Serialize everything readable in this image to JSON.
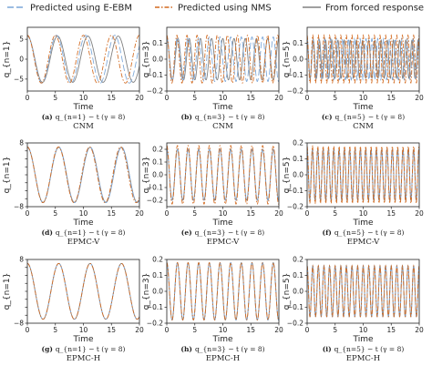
{
  "legend": {
    "entries": [
      {
        "label": "Predicted using E-EBM",
        "color": "#7aa6d8",
        "dash": "7 3"
      },
      {
        "label": "Predicted using NMS",
        "color": "#d2691e",
        "dash": "5 2 1.5 2"
      },
      {
        "label": "From forced response",
        "color": "#808080",
        "dash": ""
      }
    ]
  },
  "chart_data": [
    {
      "id": "a",
      "type": "line",
      "caption_letter": "(a)",
      "caption_text": "q_{n=1} − t (γ = 8)",
      "method": "CNM",
      "xlabel": "Time",
      "ylabel": "q_{n=1}",
      "xlim": [
        0,
        20
      ],
      "ylim": [
        -8,
        8
      ],
      "x_ticks": [
        0,
        5,
        10,
        15,
        20
      ],
      "y_ticks": [
        -5,
        0,
        5
      ],
      "y_tick_labels": [
        "−5",
        "0",
        "5"
      ],
      "series": [
        {
          "name": "Predicted using E-EBM",
          "amplitude": 6.0,
          "period": 5.2
        },
        {
          "name": "Predicted using NMS",
          "amplitude": 6.0,
          "period": 5.0
        },
        {
          "name": "From forced response",
          "amplitude": 5.8,
          "period": 5.4
        }
      ]
    },
    {
      "id": "b",
      "type": "line",
      "caption_letter": "(b)",
      "caption_text": "q_{n=3} − t (γ = 8)",
      "method": "CNM",
      "xlabel": "Time",
      "ylabel": "q_{n=3}",
      "xlim": [
        0,
        20
      ],
      "ylim": [
        -0.2,
        0.2
      ],
      "x_ticks": [
        0,
        5,
        10,
        15,
        20
      ],
      "y_ticks": [
        -0.2,
        -0.1,
        0.0,
        0.1
      ],
      "y_tick_labels": [
        "−0.2",
        "−0.1",
        "0.0",
        "0.1"
      ],
      "series": [
        {
          "name": "Predicted using E-EBM",
          "amplitude": 0.14,
          "period": 1.9
        },
        {
          "name": "Predicted using NMS",
          "amplitude": 0.15,
          "period": 1.8
        },
        {
          "name": "From forced response",
          "amplitude": 0.13,
          "period": 2.0
        }
      ]
    },
    {
      "id": "c",
      "type": "line",
      "caption_letter": "(c)",
      "caption_text": "q_{n=5} − t (γ = 8)",
      "method": "CNM",
      "xlabel": "Time",
      "ylabel": "q_{n=5}",
      "xlim": [
        0,
        20
      ],
      "ylim": [
        -0.2,
        0.2
      ],
      "x_ticks": [
        0,
        5,
        10,
        15,
        20
      ],
      "y_ticks": [
        -0.2,
        -0.1,
        0.0,
        0.1
      ],
      "y_tick_labels": [
        "−0.2",
        "−0.1",
        "0.0",
        "0.1"
      ],
      "series": [
        {
          "name": "Predicted using E-EBM",
          "amplitude": 0.13,
          "period": 1.05
        },
        {
          "name": "Predicted using NMS",
          "amplitude": 0.15,
          "period": 1.0
        },
        {
          "name": "From forced response",
          "amplitude": 0.12,
          "period": 1.1
        }
      ]
    },
    {
      "id": "d",
      "type": "line",
      "caption_letter": "(d)",
      "caption_text": "q_{n=1} − t (γ = 8)",
      "method": "EPMC-V",
      "xlabel": "Time",
      "ylabel": "q_{n=1}",
      "xlim": [
        0,
        20
      ],
      "ylim": [
        -8,
        8
      ],
      "x_ticks": [
        0,
        5,
        10,
        15,
        20
      ],
      "y_ticks": [
        -8,
        -6,
        -4,
        -2,
        0,
        2,
        4,
        6,
        8
      ],
      "y_tick_labels": [
        "−8",
        "",
        "",
        "",
        "",
        "",
        "",
        "",
        "8"
      ],
      "series": [
        {
          "name": "Predicted using E-EBM",
          "amplitude": 7.0,
          "period": 5.6
        },
        {
          "name": "Predicted using NMS",
          "amplitude": 7.0,
          "period": 5.55
        },
        {
          "name": "From forced response",
          "amplitude": 6.9,
          "period": 5.6
        }
      ]
    },
    {
      "id": "e",
      "type": "line",
      "caption_letter": "(e)",
      "caption_text": "q_{n=3} − t (γ = 8)",
      "method": "EPMC-V",
      "xlabel": "Time",
      "ylabel": "q_{n=3}",
      "xlim": [
        0,
        20
      ],
      "ylim": [
        -0.25,
        0.25
      ],
      "x_ticks": [
        0,
        5,
        10,
        15,
        20
      ],
      "y_ticks": [
        -0.2,
        -0.1,
        0.0,
        0.1,
        0.2
      ],
      "y_tick_labels": [
        "−0.2",
        "−0.1",
        "0.0",
        "0.1",
        "0.2"
      ],
      "series": [
        {
          "name": "Predicted using E-EBM",
          "amplitude": 0.2,
          "period": 1.9
        },
        {
          "name": "Predicted using NMS",
          "amplitude": 0.23,
          "period": 1.9
        },
        {
          "name": "From forced response",
          "amplitude": 0.2,
          "period": 1.9
        }
      ]
    },
    {
      "id": "f",
      "type": "line",
      "caption_letter": "(f)",
      "caption_text": "q_{n=5} − t (γ = 8)",
      "method": "EPMC-V",
      "xlabel": "Time",
      "ylabel": "q_{n=5}",
      "xlim": [
        0,
        20
      ],
      "ylim": [
        -0.2,
        0.2
      ],
      "x_ticks": [
        0,
        5,
        10,
        15,
        20
      ],
      "y_ticks": [
        -0.2,
        -0.1,
        0.0,
        0.1,
        0.2
      ],
      "y_tick_labels": [
        "−0.2",
        "−0.1",
        "0.0",
        "0.1",
        "0.2"
      ],
      "series": [
        {
          "name": "Predicted using E-EBM",
          "amplitude": 0.15,
          "period": 0.95
        },
        {
          "name": "Predicted using NMS",
          "amplitude": 0.18,
          "period": 0.95
        },
        {
          "name": "From forced response",
          "amplitude": 0.16,
          "period": 0.95
        }
      ]
    },
    {
      "id": "g",
      "type": "line",
      "caption_letter": "(g)",
      "caption_text": "q_{n=1} − t (γ = 8)",
      "method": "EPMC-H",
      "xlabel": "Time",
      "ylabel": "q_{n=1}",
      "xlim": [
        0,
        20
      ],
      "ylim": [
        -8,
        8
      ],
      "x_ticks": [
        0,
        5,
        10,
        15,
        20
      ],
      "y_ticks": [
        -8,
        -6,
        -4,
        -2,
        0,
        2,
        4,
        6,
        8
      ],
      "y_tick_labels": [
        "−8",
        "",
        "",
        "",
        "",
        "",
        "",
        "",
        "8"
      ],
      "series": [
        {
          "name": "Predicted using E-EBM",
          "amplitude": 7.0,
          "period": 5.6
        },
        {
          "name": "Predicted using NMS",
          "amplitude": 7.0,
          "period": 5.6
        },
        {
          "name": "From forced response",
          "amplitude": 7.0,
          "period": 5.6
        }
      ]
    },
    {
      "id": "h",
      "type": "line",
      "caption_letter": "(h)",
      "caption_text": "q_{n=3} − t (γ = 8)",
      "method": "EPMC-H",
      "xlabel": "Time",
      "ylabel": "q_{n=3}",
      "xlim": [
        0,
        20
      ],
      "ylim": [
        -0.2,
        0.2
      ],
      "x_ticks": [
        0,
        5,
        10,
        15,
        20
      ],
      "y_ticks": [
        -0.2,
        -0.1,
        0.0,
        0.1,
        0.2
      ],
      "y_tick_labels": [
        "−0.2",
        "−0.1",
        "0.0",
        "0.1",
        "0.2"
      ],
      "series": [
        {
          "name": "Predicted using E-EBM",
          "amplitude": 0.18,
          "period": 1.9
        },
        {
          "name": "Predicted using NMS",
          "amplitude": 0.18,
          "period": 1.9
        },
        {
          "name": "From forced response",
          "amplitude": 0.18,
          "period": 1.9
        }
      ]
    },
    {
      "id": "i",
      "type": "line",
      "caption_letter": "(i)",
      "caption_text": "q_{n=5} − t (γ = 8)",
      "method": "EPMC-H",
      "xlabel": "Time",
      "ylabel": "q_{n=5}",
      "xlim": [
        0,
        20
      ],
      "ylim": [
        -0.2,
        0.2
      ],
      "x_ticks": [
        0,
        5,
        10,
        15,
        20
      ],
      "y_ticks": [
        -0.2,
        -0.1,
        0.0,
        0.1,
        0.2
      ],
      "y_tick_labels": [
        "−0.2",
        "−0.1",
        "0.0",
        "0.1",
        "0.2"
      ],
      "series": [
        {
          "name": "Predicted using E-EBM",
          "amplitude": 0.16,
          "period": 1.0
        },
        {
          "name": "Predicted using NMS",
          "amplitude": 0.16,
          "period": 1.0
        },
        {
          "name": "From forced response",
          "amplitude": 0.16,
          "period": 1.0
        }
      ]
    }
  ]
}
